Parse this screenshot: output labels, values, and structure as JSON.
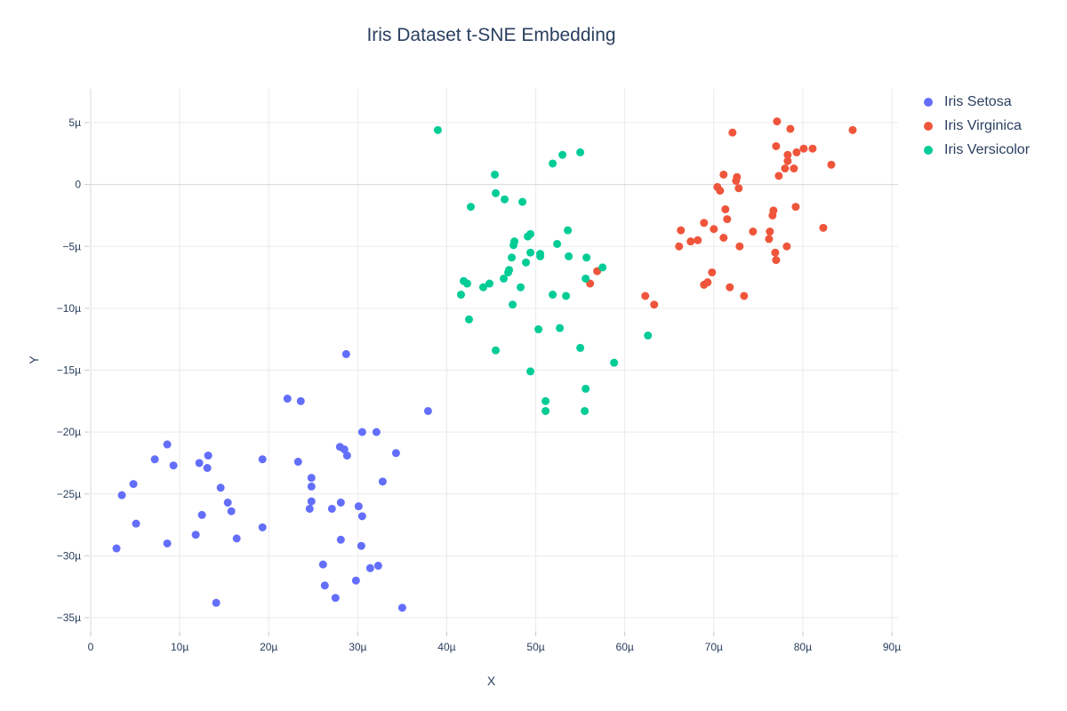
{
  "title": "Iris Dataset t-SNE Embedding",
  "axes": {
    "x_label": "X",
    "y_label": "Y",
    "x_tick_labels": [
      "0",
      "10µ",
      "20µ",
      "30µ",
      "40µ",
      "50µ",
      "60µ",
      "70µ",
      "80µ",
      "90µ"
    ],
    "x_tick_values": [
      0,
      10,
      20,
      30,
      40,
      50,
      60,
      70,
      80,
      90
    ],
    "y_tick_labels": [
      "5µ",
      "0",
      "−5µ",
      "−10µ",
      "−15µ",
      "−20µ",
      "−25µ",
      "−30µ",
      "−35µ"
    ],
    "y_tick_values": [
      5,
      0,
      -5,
      -10,
      -15,
      -20,
      -25,
      -30,
      -35
    ]
  },
  "style": {
    "text_color": "#2a3f5f",
    "grid_color": "#eaeaea",
    "zeroline_color": "#d8d8d8",
    "background": "#ffffff",
    "marker_radius": 4.5
  },
  "legend": {
    "items": [
      {
        "label": "Iris Setosa",
        "color": "#636efa"
      },
      {
        "label": "Iris Virginica",
        "color": "#ef553b"
      },
      {
        "label": "Iris Versicolor",
        "color": "#00cc96"
      }
    ]
  },
  "chart_data": {
    "type": "scatter",
    "title": "Iris Dataset t-SNE Embedding",
    "xlabel": "X",
    "ylabel": "Y",
    "unit": "micro (µ = 1e-6)",
    "xlim": [
      -0.2,
      90.7
    ],
    "ylim": [
      -36.1,
      7.7
    ],
    "grid": true,
    "legend_position": "right",
    "series": [
      {
        "name": "Iris Setosa",
        "color": "#636efa",
        "x": [
          8.6,
          7.2,
          9.3,
          13.2,
          12.2,
          13.1,
          19.3,
          23.3,
          4.8,
          3.5,
          14.6,
          24.8,
          24.8,
          15.4,
          15.8,
          12.5,
          24.8,
          24.6,
          5.1,
          11.8,
          19.3,
          16.4,
          8.6,
          2.9,
          26.1,
          26.3,
          14.1,
          28.7,
          22.1,
          23.6,
          37.9,
          30.5,
          32.1,
          28.0,
          28.5,
          28.8,
          34.3,
          32.8,
          27.1,
          28.1,
          30.1,
          30.5,
          28.1,
          30.4,
          31.4,
          32.3,
          29.8,
          27.5,
          35.0
        ],
        "y": [
          -21.0,
          -22.2,
          -22.7,
          -21.9,
          -22.5,
          -22.9,
          -22.2,
          -22.4,
          -24.2,
          -25.1,
          -24.5,
          -23.7,
          -24.4,
          -25.7,
          -26.4,
          -26.7,
          -25.6,
          -26.2,
          -27.4,
          -28.3,
          -27.7,
          -28.6,
          -29.0,
          -29.4,
          -30.7,
          -32.4,
          -33.8,
          -13.7,
          -17.3,
          -17.5,
          -18.3,
          -20.0,
          -20.0,
          -21.2,
          -21.4,
          -21.9,
          -21.7,
          -24.0,
          -26.2,
          -25.7,
          -26.0,
          -26.8,
          -28.7,
          -29.2,
          -31.0,
          -30.8,
          -32.0,
          -33.4,
          -34.2
        ]
      },
      {
        "name": "Iris Virginica",
        "color": "#ef553b",
        "x": [
          56.9,
          56.1,
          62.3,
          63.3,
          77.1,
          78.6,
          85.6,
          72.1,
          77.0,
          78.3,
          79.3,
          80.1,
          81.1,
          78.3,
          78.0,
          79.0,
          83.2,
          77.3,
          71.1,
          72.6,
          72.5,
          70.4,
          70.7,
          72.8,
          71.3,
          76.7,
          79.2,
          71.5,
          76.6,
          68.9,
          70.0,
          66.3,
          71.1,
          74.4,
          76.3,
          76.2,
          66.1,
          67.4,
          68.2,
          72.9,
          78.2,
          82.3,
          76.9,
          77.0,
          69.8,
          69.3,
          68.9,
          71.8,
          73.4
        ],
        "y": [
          -7.0,
          -8.0,
          -9.0,
          -9.7,
          5.1,
          4.5,
          4.4,
          4.2,
          3.1,
          2.4,
          2.6,
          2.9,
          2.9,
          1.9,
          1.3,
          1.3,
          1.6,
          0.7,
          0.8,
          0.6,
          0.3,
          -0.2,
          -0.5,
          -0.3,
          -2.0,
          -2.1,
          -1.8,
          -2.8,
          -2.5,
          -3.1,
          -3.6,
          -3.7,
          -4.3,
          -3.8,
          -3.8,
          -4.4,
          -5.0,
          -4.6,
          -4.5,
          -5.0,
          -5.0,
          -3.5,
          -5.5,
          -6.1,
          -7.1,
          -7.9,
          -8.1,
          -8.3,
          -9.0
        ]
      },
      {
        "name": "Iris Versicolor",
        "color": "#00cc96",
        "x": [
          39.0,
          45.4,
          45.5,
          46.5,
          48.5,
          42.7,
          47.6,
          47.5,
          47.3,
          47.0,
          41.9,
          42.3,
          41.6,
          42.5,
          44.1,
          44.8,
          46.4,
          46.9,
          48.3,
          47.4,
          45.5,
          49.4,
          51.9,
          53.0,
          55.0,
          53.6,
          49.1,
          49.4,
          52.4,
          49.4,
          50.5,
          50.5,
          53.7,
          55.7,
          57.5,
          48.9,
          55.6,
          51.9,
          53.4,
          50.3,
          52.7,
          62.6,
          55.0,
          58.8,
          55.6,
          51.1,
          51.1,
          55.5
        ],
        "y": [
          4.4,
          0.8,
          -0.7,
          -1.2,
          -1.4,
          -1.8,
          -4.6,
          -4.9,
          -5.9,
          -6.9,
          -7.8,
          -8.0,
          -8.9,
          -10.9,
          -8.3,
          -8.0,
          -7.6,
          -7.1,
          -8.3,
          -9.7,
          -13.4,
          -15.1,
          1.7,
          2.4,
          2.6,
          -3.7,
          -4.2,
          -4.0,
          -4.8,
          -5.5,
          -5.6,
          -5.8,
          -5.8,
          -5.9,
          -6.7,
          -6.3,
          -7.6,
          -8.9,
          -9.0,
          -11.7,
          -11.6,
          -12.2,
          -13.2,
          -14.4,
          -16.5,
          -17.5,
          -18.3,
          -18.3
        ]
      }
    ]
  }
}
